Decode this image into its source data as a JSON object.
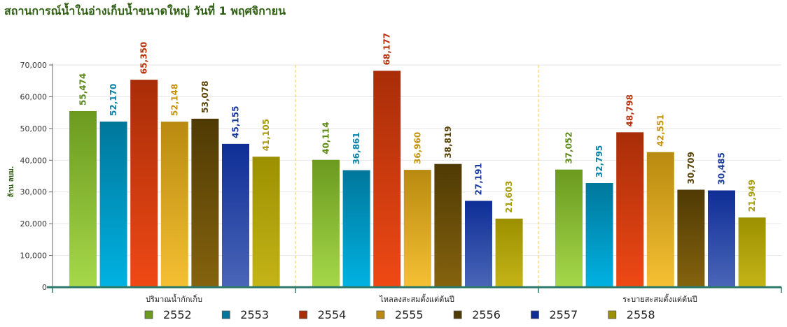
{
  "chart_data": {
    "type": "bar",
    "title": "สถานการณ์น้ำในอ่างเก็บน้ำขนาดใหญ่ วันที่ 1 พฤศจิกายน",
    "ylabel": "ล้าน ลบม.",
    "xlabel": "",
    "ylim": [
      0,
      70000
    ],
    "yticks": [
      "0",
      "10,000",
      "20,000",
      "30,000",
      "40,000",
      "50,000",
      "60,000",
      "70,000"
    ],
    "grid": true,
    "legend_position": "bottom",
    "categories": [
      "ปริมาณน้ำกักเก็บ",
      "ไหลลงสะสมตั้งแต่ต้นปี",
      "ระบายสะสมตั้งแต่ต้นปี"
    ],
    "series": [
      {
        "name": "2552",
        "values": [
          55474,
          40114,
          37052
        ],
        "labels": [
          "55,474",
          "40,114",
          "37,052"
        ],
        "color_top": "#6b9a1f",
        "color_bottom": "#a6d84a",
        "label_color": "#5e8a1a"
      },
      {
        "name": "2553",
        "values": [
          52170,
          36861,
          32795
        ],
        "labels": [
          "52,170",
          "36,861",
          "32,795"
        ],
        "color_top": "#00779b",
        "color_bottom": "#00b2e2",
        "label_color": "#0a83a8"
      },
      {
        "name": "2554",
        "values": [
          65350,
          68177,
          48798
        ],
        "labels": [
          "65,350",
          "68,177",
          "48,798"
        ],
        "color_top": "#a82d08",
        "color_bottom": "#ef4915",
        "label_color": "#b5310b"
      },
      {
        "name": "2555",
        "values": [
          52148,
          36960,
          42551
        ],
        "labels": [
          "52,148",
          "36,960",
          "42,551"
        ],
        "color_top": "#b98a10",
        "color_bottom": "#f5c033",
        "label_color": "#c4930f"
      },
      {
        "name": "2556",
        "values": [
          53078,
          38819,
          30709
        ],
        "labels": [
          "53,078",
          "38,819",
          "30,709"
        ],
        "color_top": "#4f3a04",
        "color_bottom": "#85630e",
        "label_color": "#5a4306"
      },
      {
        "name": "2557",
        "values": [
          45155,
          27191,
          30485
        ],
        "labels": [
          "45,155",
          "27,191",
          "30,485"
        ],
        "color_top": "#0f2e96",
        "color_bottom": "#4a66b8",
        "label_color": "#1a3a9e"
      },
      {
        "name": "2558",
        "values": [
          41105,
          21603,
          21949
        ],
        "labels": [
          "41,105",
          "21,603",
          "21,949"
        ],
        "color_top": "#9c9000",
        "color_bottom": "#c4b418",
        "label_color": "#a89c0a"
      }
    ]
  }
}
